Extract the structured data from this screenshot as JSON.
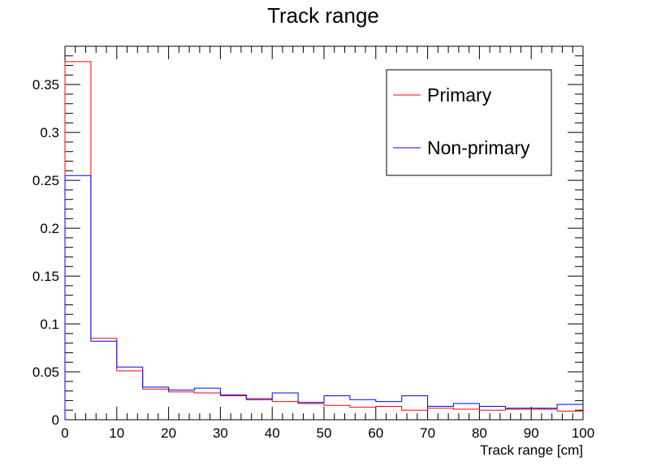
{
  "chart_data": {
    "type": "histogram",
    "title": "Track range",
    "xlabel": "Track range [cm]",
    "ylabel": "",
    "xlim": [
      0,
      100
    ],
    "ylim": [
      0,
      0.39
    ],
    "bin_edges": [
      0,
      5,
      10,
      15,
      20,
      25,
      30,
      35,
      40,
      45,
      50,
      55,
      60,
      65,
      70,
      75,
      80,
      85,
      90,
      95,
      100
    ],
    "x_ticks": [
      "0",
      "10",
      "20",
      "30",
      "40",
      "50",
      "60",
      "70",
      "80",
      "90",
      "100"
    ],
    "y_ticks": [
      "0",
      "0.05",
      "0.1",
      "0.15",
      "0.2",
      "0.25",
      "0.3",
      "0.35"
    ],
    "legend_position": "top-right",
    "grid": false,
    "series": [
      {
        "name": "Primary",
        "color": "#ff0000",
        "values": [
          0.374,
          0.085,
          0.051,
          0.032,
          0.029,
          0.028,
          0.025,
          0.022,
          0.019,
          0.017,
          0.015,
          0.013,
          0.014,
          0.01,
          0.012,
          0.011,
          0.01,
          0.011,
          0.011,
          0.009
        ]
      },
      {
        "name": "Non-primary",
        "color": "#0000ff",
        "values": [
          0.255,
          0.082,
          0.055,
          0.034,
          0.031,
          0.033,
          0.026,
          0.021,
          0.028,
          0.018,
          0.025,
          0.021,
          0.019,
          0.025,
          0.014,
          0.017,
          0.014,
          0.012,
          0.012,
          0.016
        ]
      }
    ]
  }
}
